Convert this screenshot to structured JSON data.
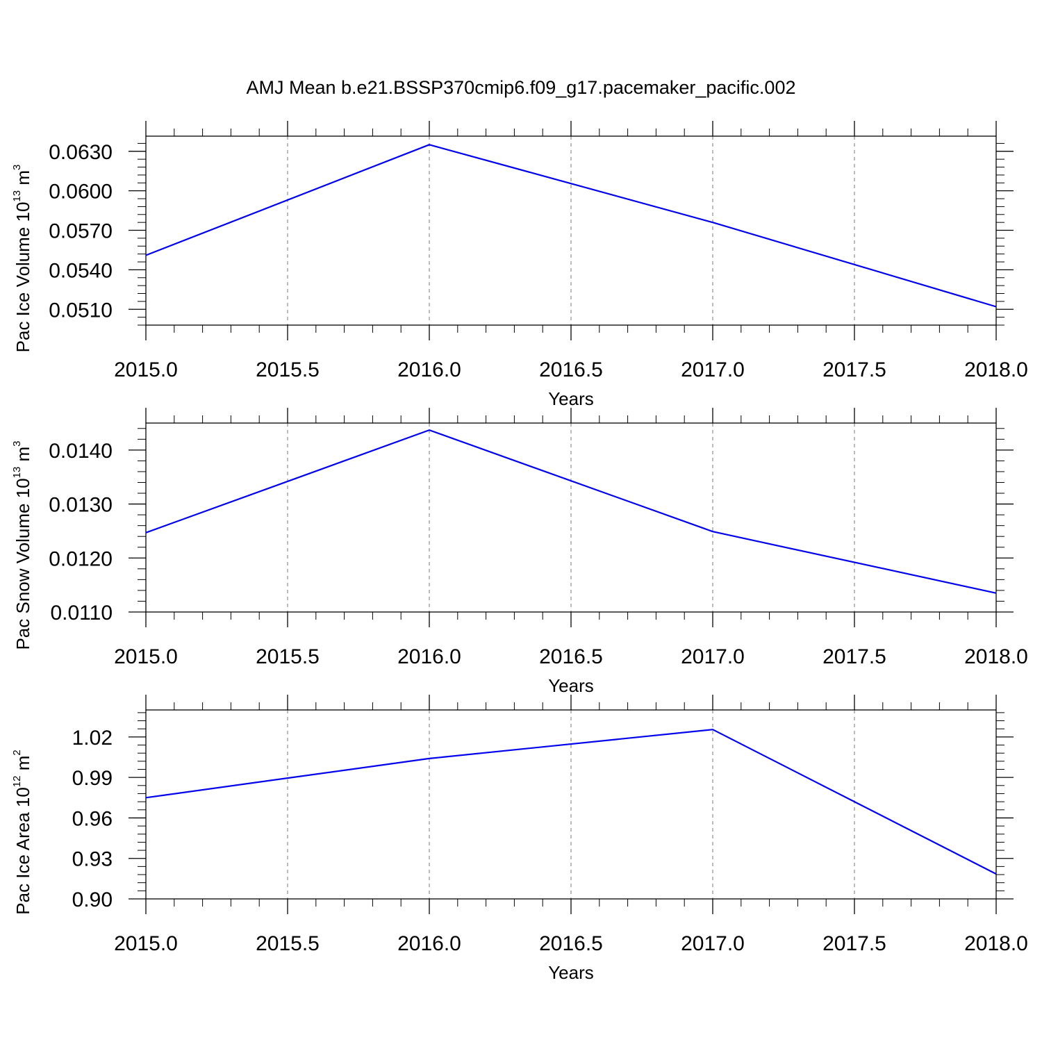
{
  "title": "AMJ Mean b.e21.BSSP370cmip6.f09_g17.pacemaker_pacific.002",
  "colors": {
    "line": "#0000ee",
    "frame": "#000000",
    "grid": "#777777"
  },
  "chart_data": [
    {
      "type": "line",
      "xlabel": "Years",
      "ylabel": "Pac Ice Volume 10",
      "ylabel_exp": "13",
      "ylabel_unit": " m",
      "ylabel_unit_exp": "3",
      "xlim": [
        2015.0,
        2018.0
      ],
      "ylim": [
        0.0498,
        0.06415
      ],
      "xticks": [
        2015.0,
        2015.5,
        2016.0,
        2016.5,
        2017.0,
        2017.5,
        2018.0
      ],
      "xtick_labels": [
        "2015.0",
        "2015.5",
        "2016.0",
        "2016.5",
        "2017.0",
        "2017.5",
        "2018.0"
      ],
      "yticks": [
        0.051,
        0.054,
        0.057,
        0.06,
        0.063
      ],
      "ytick_labels": [
        "0.0510",
        "0.0540",
        "0.0570",
        "0.0600",
        "0.0630"
      ],
      "yminor_step": 0.0006,
      "grid": "vertical-dashed",
      "x": [
        2015.0,
        2016.0,
        2017.0,
        2018.0
      ],
      "y": [
        0.0551,
        0.0635,
        0.0576,
        0.0512
      ]
    },
    {
      "type": "line",
      "xlabel": "Years",
      "ylabel": "Pac Snow Volume 10",
      "ylabel_exp": "13",
      "ylabel_unit": " m",
      "ylabel_unit_exp": "3",
      "xlim": [
        2015.0,
        2018.0
      ],
      "ylim": [
        0.011,
        0.0145
      ],
      "xticks": [
        2015.0,
        2015.5,
        2016.0,
        2016.5,
        2017.0,
        2017.5,
        2018.0
      ],
      "xtick_labels": [
        "2015.0",
        "2015.5",
        "2016.0",
        "2016.5",
        "2017.0",
        "2017.5",
        "2018.0"
      ],
      "yticks": [
        0.011,
        0.012,
        0.013,
        0.014
      ],
      "ytick_labels": [
        "0.0110",
        "0.0120",
        "0.0130",
        "0.0140"
      ],
      "yminor_step": 0.0002,
      "grid": "vertical-dashed",
      "x": [
        2015.0,
        2016.0,
        2017.0,
        2018.0
      ],
      "y": [
        0.01247,
        0.01437,
        0.01249,
        0.01135
      ]
    },
    {
      "type": "line",
      "xlabel": "Years",
      "ylabel": "Pac Ice Area 10",
      "ylabel_exp": "12",
      "ylabel_unit": " m",
      "ylabel_unit_exp": "2",
      "xlim": [
        2015.0,
        2018.0
      ],
      "ylim": [
        0.9,
        1.04
      ],
      "xticks": [
        2015.0,
        2015.5,
        2016.0,
        2016.5,
        2017.0,
        2017.5,
        2018.0
      ],
      "xtick_labels": [
        "2015.0",
        "2015.5",
        "2016.0",
        "2016.5",
        "2017.0",
        "2017.5",
        "2018.0"
      ],
      "yticks": [
        0.9,
        0.93,
        0.96,
        0.99,
        1.02
      ],
      "ytick_labels": [
        "0.90",
        "0.93",
        "0.96",
        "0.99",
        "1.02"
      ],
      "yminor_step": 0.006,
      "grid": "vertical-dashed",
      "x": [
        2015.0,
        2016.0,
        2017.0,
        2018.0
      ],
      "y": [
        0.975,
        1.004,
        1.0255,
        0.9185
      ]
    }
  ]
}
